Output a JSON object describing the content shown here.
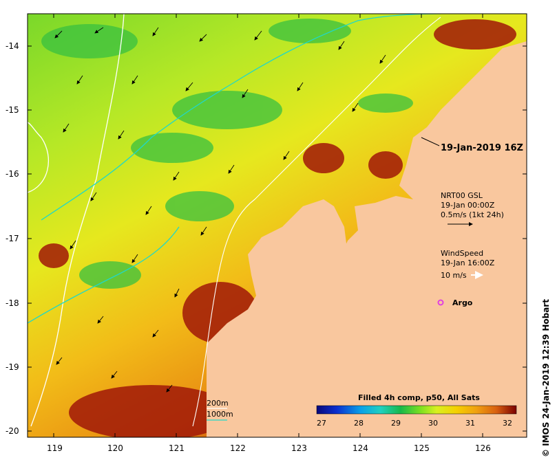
{
  "map": {
    "lon_ticks": [
      "119",
      "120",
      "121",
      "122",
      "123",
      "124",
      "125",
      "126"
    ],
    "lat_ticks": [
      "-14",
      "-15",
      "-16",
      "-17",
      "-18",
      "-19",
      "-20"
    ],
    "image_time_label": "19-Jan-2019 16Z",
    "currents_legend": {
      "title": "NRT00 GSL",
      "time": "19-Jan 00:00Z",
      "scale": "0.5m/s (1kt 24h)"
    },
    "wind_legend": {
      "title": "WindSpeed",
      "time": "19-Jan 16:00Z",
      "scale": "10 m/s"
    },
    "argo_label": "Argo",
    "isobath_legend": {
      "a": "200m",
      "b": "1000m"
    },
    "colorbar": {
      "title": "Filled 4h comp, p50, All Sats",
      "ticks": [
        "27",
        "28",
        "29",
        "30",
        "31",
        "32"
      ],
      "colors": [
        "#08087a",
        "#0b2fcf",
        "#0aa0e8",
        "#20d0c0",
        "#18b84a",
        "#7ce020",
        "#d8f020",
        "#f5d000",
        "#f0a010",
        "#d86010",
        "#a81808",
        "#6e0000"
      ]
    },
    "credit": "© IMOS 24-Jan-2019 12:39 Hobart",
    "colors": {
      "land": "#f9c79e",
      "isobath_200": "#20d8c8",
      "isobath_1000": "#ffffff",
      "argo": "#e040e0"
    }
  }
}
